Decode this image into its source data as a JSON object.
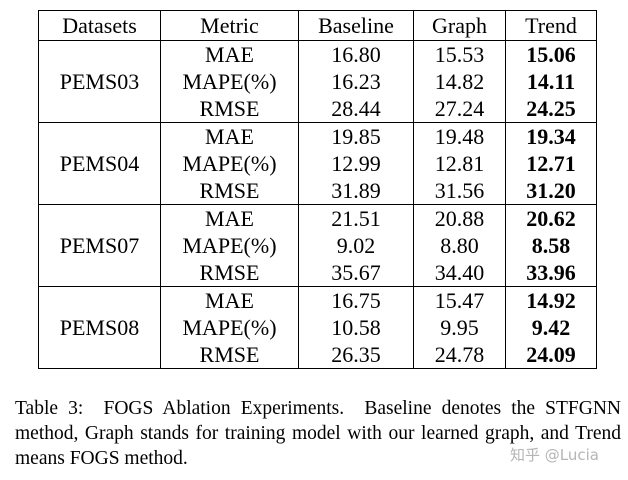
{
  "table": {
    "header": [
      "Datasets",
      "Metric",
      "Baseline",
      "Graph",
      "Trend"
    ],
    "groups": [
      {
        "dataset": "PEMS03",
        "rows": [
          [
            "MAE",
            "16.80",
            "15.53",
            "15.06"
          ],
          [
            "MAPE(%)",
            "16.23",
            "14.82",
            "14.11"
          ],
          [
            "RMSE",
            "28.44",
            "27.24",
            "24.25"
          ]
        ]
      },
      {
        "dataset": "PEMS04",
        "rows": [
          [
            "MAE",
            "19.85",
            "19.48",
            "19.34"
          ],
          [
            "MAPE(%)",
            "12.99",
            "12.81",
            "12.71"
          ],
          [
            "RMSE",
            "31.89",
            "31.56",
            "31.20"
          ]
        ]
      },
      {
        "dataset": "PEMS07",
        "rows": [
          [
            "MAE",
            "21.51",
            "20.88",
            "20.62"
          ],
          [
            "MAPE(%)",
            "9.02",
            "8.80",
            "8.58"
          ],
          [
            "RMSE",
            "35.67",
            "34.40",
            "33.96"
          ]
        ]
      },
      {
        "dataset": "PEMS08",
        "rows": [
          [
            "MAE",
            "16.75",
            "15.47",
            "14.92"
          ],
          [
            "MAPE(%)",
            "10.58",
            "9.95",
            "9.42"
          ],
          [
            "RMSE",
            "26.35",
            "24.78",
            "24.09"
          ]
        ]
      }
    ]
  },
  "caption": "Table 3:  FOGS Ablation Experiments.  Baseline denotes the STFGNN method, Graph stands for training model with our learned graph, and Trend means FOGS method.",
  "watermark": "知乎 @Lucia"
}
